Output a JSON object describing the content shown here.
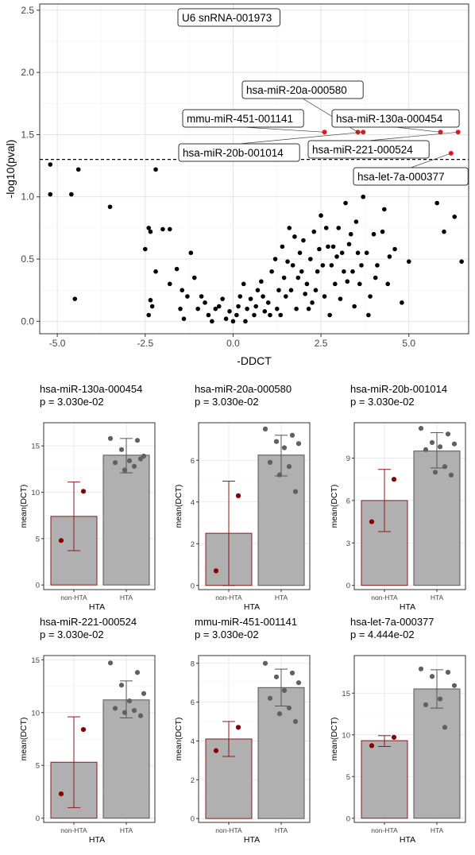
{
  "chart_data": [
    {
      "type": "scatter",
      "xlabel": "-DDCT",
      "ylabel": "-log10(pval)",
      "xlim": [
        -5.5,
        6.7
      ],
      "ylim": [
        -0.1,
        2.55
      ],
      "x_ticks": [
        -5.0,
        -2.5,
        0.0,
        2.5,
        5.0
      ],
      "x_tick_labels": [
        "-5.0",
        "-2.5",
        "0.0",
        "2.5",
        "5.0"
      ],
      "y_ticks": [
        0.0,
        0.5,
        1.0,
        1.5,
        2.0,
        2.5
      ],
      "y_tick_labels": [
        "0.0",
        "0.5",
        "1.0",
        "1.5",
        "2.0",
        "2.5"
      ],
      "grid": true,
      "threshold_line": {
        "y": 1.301,
        "style": "dashed"
      },
      "colors": {
        "significant": "#e31a1c",
        "other": "#000000"
      },
      "highlighted": [
        {
          "label": "U6 snRNA-001973",
          "x": -1.2,
          "y": 2.43
        },
        {
          "label": "hsa-miR-20a-000580",
          "x": 3.55,
          "y": 1.52
        },
        {
          "label": "mmu-miR-451-001141",
          "x": 2.6,
          "y": 1.52
        },
        {
          "label": "hsa-miR-130a-000454",
          "x": 5.9,
          "y": 1.52
        },
        {
          "label": "hsa-miR-20b-001014",
          "x": 3.7,
          "y": 1.52
        },
        {
          "label": "hsa-miR-221-000524",
          "x": 6.4,
          "y": 1.52
        },
        {
          "label": "hsa-let-7a-000377",
          "x": 6.2,
          "y": 1.35
        }
      ],
      "points": [
        [
          -5.2,
          1.26
        ],
        [
          -5.2,
          1.02
        ],
        [
          -4.6,
          1.02
        ],
        [
          -4.4,
          1.22
        ],
        [
          -4.5,
          0.18
        ],
        [
          -3.5,
          0.92
        ],
        [
          -2.5,
          0.58
        ],
        [
          -2.4,
          0.75
        ],
        [
          -2.35,
          0.72
        ],
        [
          -2.2,
          1.22
        ],
        [
          -2.0,
          0.74
        ],
        [
          -1.8,
          0.74
        ],
        [
          -2.3,
          0.12
        ],
        [
          -2.4,
          0.05
        ],
        [
          -2.35,
          0.17
        ],
        [
          -2.2,
          0.4
        ],
        [
          -1.8,
          0.3
        ],
        [
          -1.6,
          0.42
        ],
        [
          -1.5,
          0.1
        ],
        [
          -1.45,
          0.25
        ],
        [
          -1.4,
          0.02
        ],
        [
          -1.3,
          0.2
        ],
        [
          -1.2,
          0.55
        ],
        [
          -1.1,
          0.35
        ],
        [
          -1.0,
          0.1
        ],
        [
          -0.9,
          0.2
        ],
        [
          -0.8,
          0.15
        ],
        [
          -0.7,
          0.05
        ],
        [
          -0.6,
          0.0
        ],
        [
          -0.5,
          0.1
        ],
        [
          -0.4,
          0.12
        ],
        [
          -0.3,
          0.18
        ],
        [
          -0.2,
          0.02
        ],
        [
          -0.1,
          0.08
        ],
        [
          0.0,
          0.0
        ],
        [
          0.1,
          0.05
        ],
        [
          0.2,
          0.2
        ],
        [
          0.3,
          0.3
        ],
        [
          0.4,
          0.1
        ],
        [
          0.5,
          0.18
        ],
        [
          0.6,
          0.05
        ],
        [
          0.7,
          0.25
        ],
        [
          0.8,
          0.32
        ],
        [
          0.9,
          0.08
        ],
        [
          1.0,
          0.15
        ],
        [
          1.1,
          0.4
        ],
        [
          1.2,
          0.5
        ],
        [
          1.3,
          0.25
        ],
        [
          1.4,
          0.6
        ],
        [
          1.5,
          0.2
        ],
        [
          1.6,
          0.75
        ],
        [
          1.7,
          0.45
        ],
        [
          1.8,
          0.1
        ],
        [
          1.9,
          0.55
        ],
        [
          2.0,
          0.65
        ],
        [
          2.1,
          0.3
        ],
        [
          2.2,
          0.5
        ],
        [
          2.3,
          0.72
        ],
        [
          2.4,
          0.4
        ],
        [
          2.5,
          0.85
        ],
        [
          2.6,
          0.2
        ],
        [
          2.7,
          0.6
        ],
        [
          2.8,
          0.45
        ],
        [
          2.9,
          0.3
        ],
        [
          3.0,
          0.75
        ],
        [
          3.1,
          0.55
        ],
        [
          3.2,
          0.95
        ],
        [
          3.3,
          0.62
        ],
        [
          3.4,
          0.4
        ],
        [
          3.5,
          0.8
        ],
        [
          3.6,
          0.3
        ],
        [
          3.7,
          1.0
        ],
        [
          3.8,
          0.55
        ],
        [
          3.9,
          0.2
        ],
        [
          4.0,
          0.7
        ],
        [
          4.1,
          0.45
        ],
        [
          4.3,
          0.9
        ],
        [
          4.4,
          0.3
        ],
        [
          4.6,
          0.58
        ],
        [
          4.8,
          0.15
        ],
        [
          5.0,
          0.48
        ],
        [
          5.8,
          0.95
        ],
        [
          6.0,
          0.72
        ],
        [
          6.3,
          0.84
        ],
        [
          6.5,
          0.48
        ],
        [
          0.15,
          0.12
        ],
        [
          0.35,
          0.0
        ],
        [
          0.65,
          0.12
        ],
        [
          0.85,
          0.2
        ],
        [
          1.05,
          0.05
        ],
        [
          1.25,
          0.1
        ],
        [
          1.45,
          0.35
        ],
        [
          1.65,
          0.25
        ],
        [
          1.85,
          0.35
        ],
        [
          2.05,
          0.22
        ],
        [
          2.25,
          0.15
        ],
        [
          2.45,
          0.58
        ],
        [
          2.65,
          0.75
        ],
        [
          2.85,
          0.6
        ],
        [
          3.05,
          0.18
        ],
        [
          3.25,
          0.32
        ],
        [
          3.45,
          0.12
        ],
        [
          3.65,
          0.45
        ],
        [
          3.85,
          0.05
        ],
        [
          4.05,
          0.35
        ],
        [
          4.25,
          0.72
        ],
        [
          4.45,
          0.52
        ],
        [
          1.35,
          0.05
        ],
        [
          1.55,
          0.48
        ],
        [
          1.75,
          0.68
        ],
        [
          1.95,
          0.4
        ],
        [
          2.15,
          0.1
        ],
        [
          2.35,
          0.25
        ],
        [
          2.55,
          0.45
        ],
        [
          2.75,
          0.05
        ],
        [
          2.95,
          0.52
        ],
        [
          3.15,
          0.4
        ],
        [
          3.35,
          0.7
        ],
        [
          3.55,
          0.55
        ]
      ]
    },
    {
      "type": "bar",
      "title": "hsa-miR-130a-000454",
      "subtitle": "p = 3.030e-02",
      "categories": [
        "non-HTA",
        "HTA"
      ],
      "values": [
        7.4,
        14.0
      ],
      "error": [
        [
          3.7,
          11.1
        ],
        [
          12.1,
          15.8
        ]
      ],
      "points": [
        [
          10.1,
          4.8
        ],
        [
          15.8,
          15.6,
          14.6,
          13.9,
          13.4,
          13.2,
          12.8,
          12.4,
          13.6
        ]
      ],
      "ylim": [
        -0.5,
        17.5
      ],
      "y_ticks": [
        0,
        5,
        10,
        15
      ],
      "ylabel": "mean(DCT)",
      "xlabel": "HTA"
    },
    {
      "type": "bar",
      "title": "hsa-miR-20a-000580",
      "subtitle": "p = 3.030e-02",
      "categories": [
        "non-HTA",
        "HTA"
      ],
      "values": [
        2.5,
        6.25
      ],
      "error": [
        [
          0.0,
          5.0
        ],
        [
          5.25,
          7.2
        ]
      ],
      "points": [
        [
          4.3,
          0.7
        ],
        [
          7.5,
          7.2,
          6.9,
          6.8,
          6.6,
          5.9,
          5.7,
          5.3,
          4.5
        ]
      ],
      "ylim": [
        -0.2,
        7.8
      ],
      "y_ticks": [
        0,
        2,
        4,
        6
      ],
      "ylabel": "mean(DCT)",
      "xlabel": "HTA"
    },
    {
      "type": "bar",
      "title": "hsa-miR-20b-001014",
      "subtitle": "p = 3.030e-02",
      "categories": [
        "non-HTA",
        "HTA"
      ],
      "values": [
        6.0,
        9.5
      ],
      "error": [
        [
          3.8,
          8.2
        ],
        [
          8.3,
          10.8
        ]
      ],
      "points": [
        [
          7.5,
          4.5
        ],
        [
          11.1,
          10.7,
          10.1,
          10.0,
          9.8,
          9.6,
          8.4,
          8.0,
          7.8
        ]
      ],
      "ylim": [
        -0.3,
        11.5
      ],
      "y_ticks": [
        0,
        3,
        6,
        9
      ],
      "ylabel": "mean(DCT)",
      "xlabel": "HTA"
    },
    {
      "type": "bar",
      "title": "hsa-miR-221-000524",
      "subtitle": "p = 3.030e-02",
      "categories": [
        "non-HTA",
        "HTA"
      ],
      "values": [
        5.3,
        11.2
      ],
      "error": [
        [
          1.0,
          9.6
        ],
        [
          9.5,
          13.0
        ]
      ],
      "points": [
        [
          8.4,
          2.3
        ],
        [
          14.7,
          13.8,
          12.6,
          11.8,
          11.1,
          10.4,
          10.2,
          10.0,
          9.7
        ]
      ],
      "ylim": [
        -0.4,
        15.4
      ],
      "y_ticks": [
        0,
        5,
        10,
        15
      ],
      "ylabel": "mean(DCT)",
      "xlabel": "HTA"
    },
    {
      "type": "bar",
      "title": "mmu-miR-451-001141",
      "subtitle": "p = 3.030e-02",
      "categories": [
        "non-HTA",
        "HTA"
      ],
      "values": [
        4.1,
        6.75
      ],
      "error": [
        [
          3.2,
          5.0
        ],
        [
          5.8,
          7.7
        ]
      ],
      "points": [
        [
          4.7,
          3.5
        ],
        [
          8.0,
          7.5,
          7.3,
          7.0,
          6.6,
          6.2,
          5.7,
          5.4,
          5.0
        ]
      ],
      "ylim": [
        -0.2,
        8.4
      ],
      "y_ticks": [
        0,
        2,
        4,
        6,
        8
      ],
      "ylabel": "mean(DCT)",
      "xlabel": "HTA"
    },
    {
      "type": "bar",
      "title": "hsa-let-7a-000377",
      "subtitle": "p = 4.444e-02",
      "categories": [
        "non-HTA",
        "HTA"
      ],
      "values": [
        9.3,
        15.5
      ],
      "error": [
        [
          8.6,
          9.9
        ],
        [
          13.2,
          17.8
        ]
      ],
      "points": [
        [
          9.7,
          8.7
        ],
        [
          17.9,
          17.5,
          17.0,
          15.9,
          14.3,
          13.6,
          10.9
        ]
      ],
      "ylim": [
        -0.5,
        19.5
      ],
      "y_ticks": [
        0,
        5,
        10,
        15
      ],
      "ylabel": "mean(DCT)",
      "xlabel": "HTA"
    }
  ],
  "colors": {
    "nonhta_bar": "#b0b0b0",
    "nonhta_border": "#8b1a1a",
    "nonhta_points": "#8b0000",
    "hta_bar": "#b0b0b0",
    "hta_border": "#555555",
    "hta_points": "#606060"
  }
}
